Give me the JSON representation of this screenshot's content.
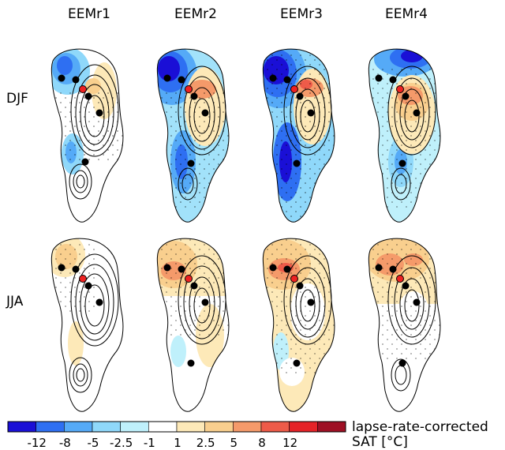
{
  "columns": [
    "EEMr1",
    "EEMr2",
    "EEMr3",
    "EEMr4"
  ],
  "rows": [
    "DJF",
    "JJA"
  ],
  "colorbar": {
    "colors": [
      "#1a0fd6",
      "#2e6ff2",
      "#55aaf7",
      "#8fd8fa",
      "#bff0fb",
      "#ffffff",
      "#fde9b8",
      "#f9cf8e",
      "#f59a6a",
      "#ee5b49",
      "#e52227",
      "#9e0f24"
    ],
    "tick_labels": [
      "-12",
      "-8",
      "-5",
      "-2.5",
      "-1",
      "1",
      "2.5",
      "5",
      "8",
      "12"
    ],
    "label_line1": "lapse-rate-corrected",
    "label_line2": "SAT [°C]"
  }
}
